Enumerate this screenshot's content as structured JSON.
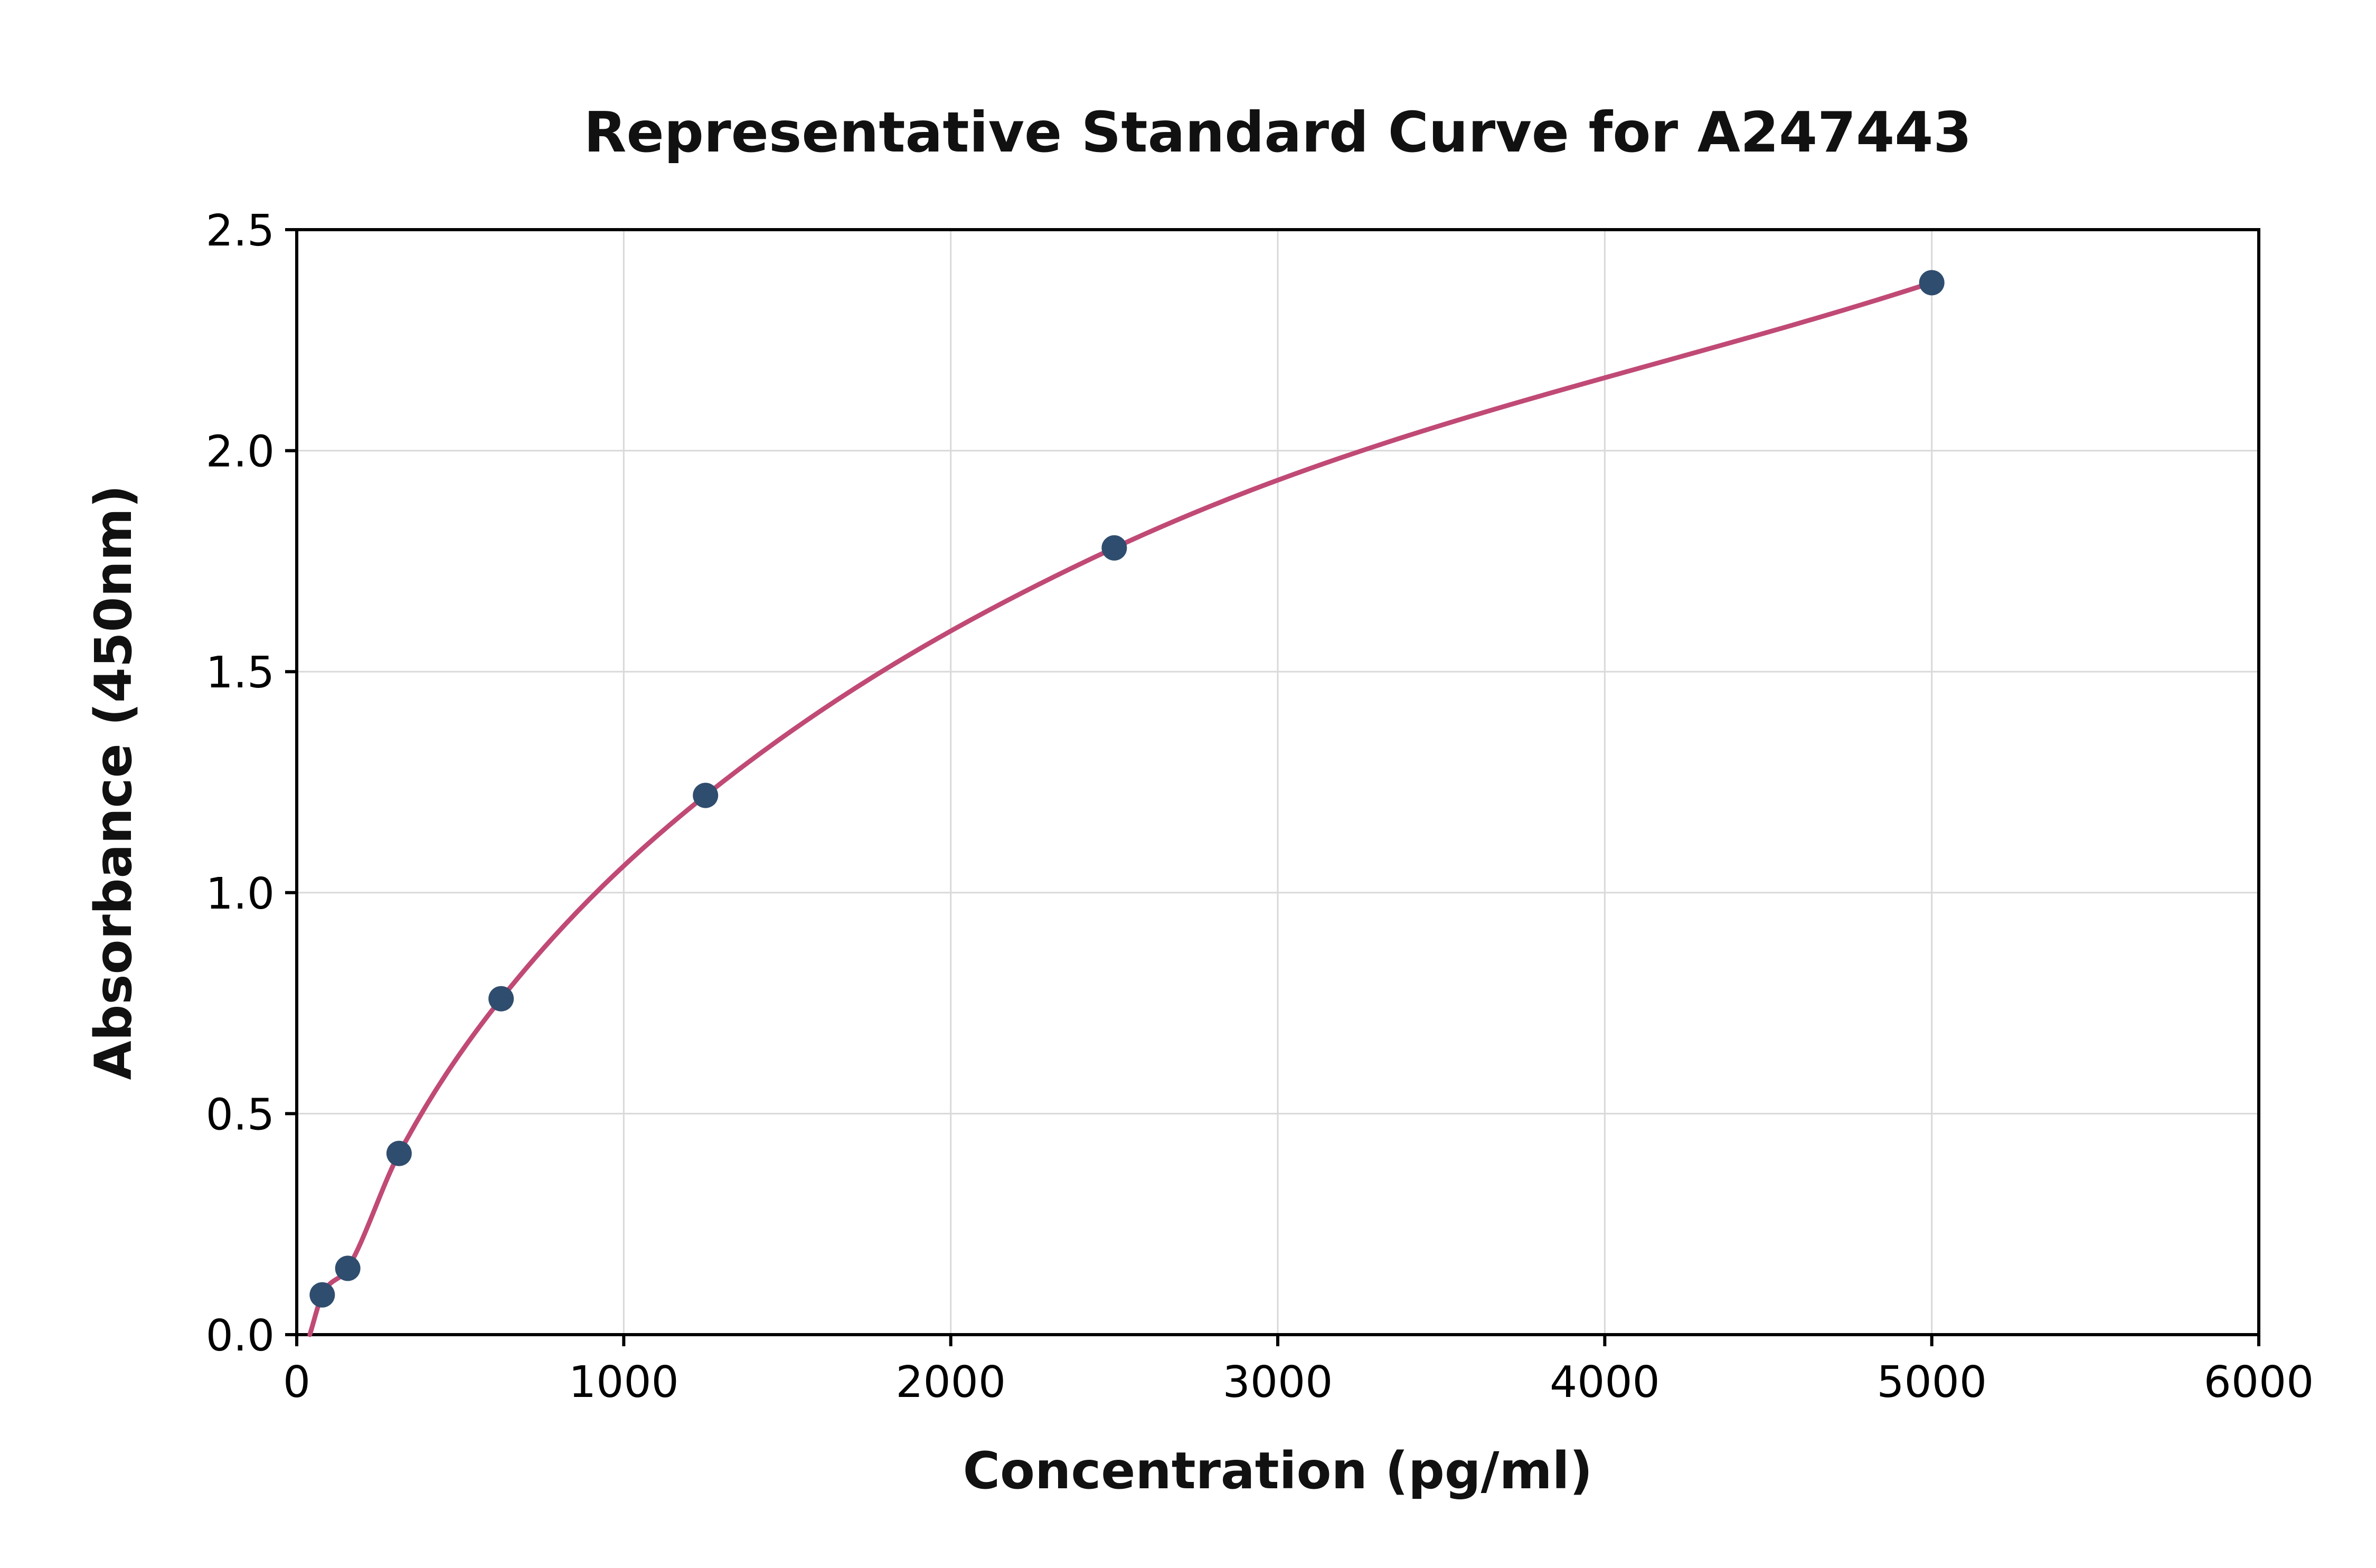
{
  "chart_data": {
    "type": "scatter",
    "title": "Representative Standard Curve for A247443",
    "xlabel": "Concentration (pg/ml)",
    "ylabel": "Absorbance (450nm)",
    "xlim": [
      0,
      6000
    ],
    "ylim": [
      0,
      2.5
    ],
    "xticks": [
      0,
      1000,
      2000,
      3000,
      4000,
      5000,
      6000
    ],
    "yticks": [
      0.0,
      0.5,
      1.0,
      1.5,
      2.0,
      2.5
    ],
    "grid": true,
    "legend": "none",
    "points": [
      [
        78,
        0.09
      ],
      [
        156,
        0.15
      ],
      [
        313,
        0.41
      ],
      [
        625,
        0.76
      ],
      [
        1250,
        1.22
      ],
      [
        2500,
        1.78
      ],
      [
        5000,
        2.38
      ]
    ],
    "curve_start": [
      40,
      0.0
    ],
    "colors": {
      "curve": "#c04a75",
      "point": "#2f4d6e",
      "grid": "#d9d9d9",
      "axis": "#000000",
      "background": "#ffffff"
    }
  }
}
